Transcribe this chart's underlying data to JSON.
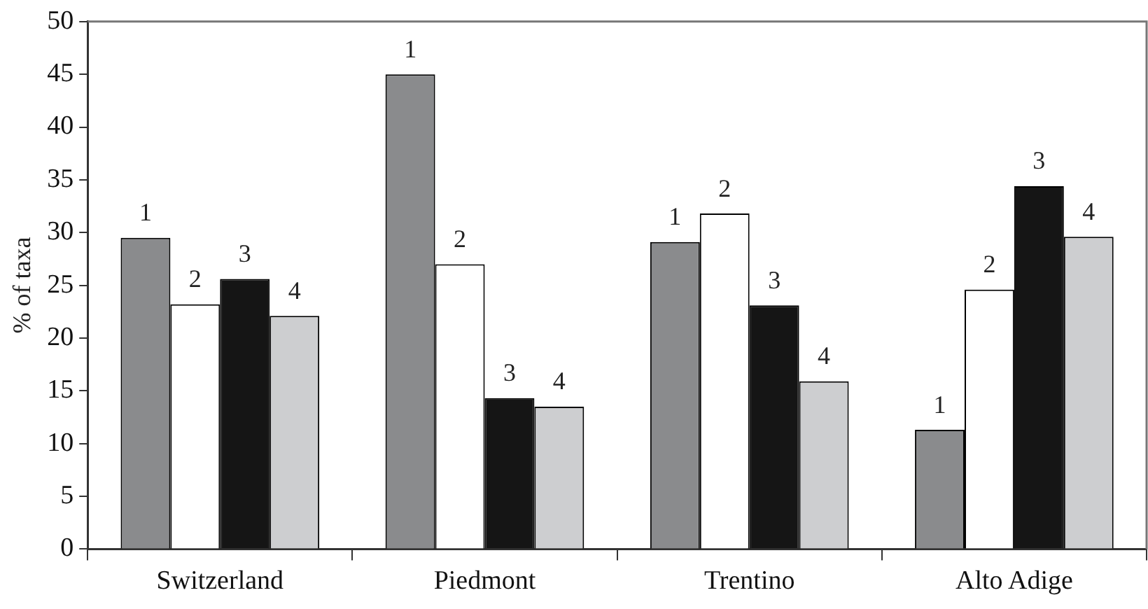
{
  "chart_data": {
    "type": "bar",
    "ylabel": "% of taxa",
    "categories": [
      "Switzerland",
      "Piedmont",
      "Trentino",
      "Alto Adige"
    ],
    "series": [
      {
        "name": "1",
        "color": "#8a8b8d",
        "values": [
          29.5,
          45.0,
          29.1,
          11.3
        ]
      },
      {
        "name": "2",
        "color": "#ffffff",
        "values": [
          23.2,
          27.0,
          31.8,
          24.6
        ]
      },
      {
        "name": "3",
        "color": "#151515",
        "values": [
          25.6,
          14.3,
          23.1,
          34.4
        ]
      },
      {
        "name": "4",
        "color": "#cdced0",
        "values": [
          22.1,
          13.5,
          15.9,
          29.6
        ]
      }
    ],
    "ylim": [
      0,
      50
    ],
    "yticks": [
      0,
      5,
      10,
      15,
      20,
      25,
      30,
      35,
      40,
      45,
      50
    ],
    "grid": false,
    "legend": false
  }
}
